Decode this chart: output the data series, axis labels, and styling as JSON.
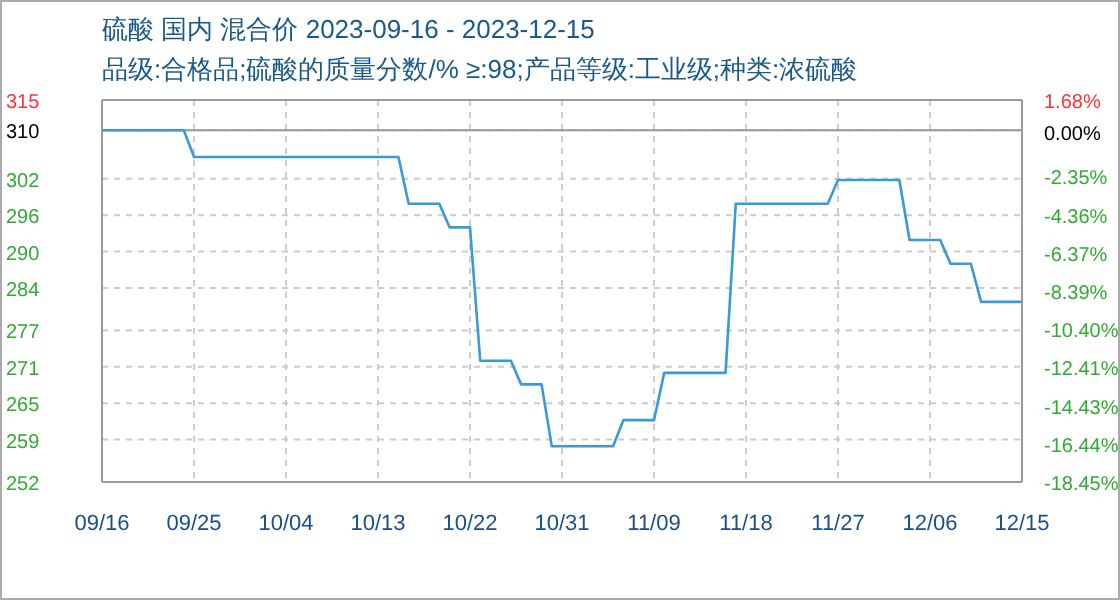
{
  "chart_data": {
    "type": "line",
    "title": "硫酸 国内 混合价 2023-09-16 - 2023-12-15",
    "subtitle": "品级:合格品;硫酸的质量分数/%  ≥:98;产品等级:工业级;种类:浓硫酸",
    "x": [
      "2023-09-16",
      "2023-09-24",
      "2023-09-25",
      "2023-10-15",
      "2023-10-16",
      "2023-10-19",
      "2023-10-20",
      "2023-10-22",
      "2023-10-23",
      "2023-10-26",
      "2023-10-27",
      "2023-10-29",
      "2023-10-30",
      "2023-11-05",
      "2023-11-06",
      "2023-11-09",
      "2023-11-10",
      "2023-11-16",
      "2023-11-17",
      "2023-11-26",
      "2023-11-27",
      "2023-12-03",
      "2023-12-04",
      "2023-12-07",
      "2023-12-08",
      "2023-12-10",
      "2023-12-11",
      "2023-12-15"
    ],
    "series": [
      {
        "color": "#3a9ad9",
        "values": [
          310,
          310,
          305.6,
          305.6,
          297.9,
          297.9,
          294.0,
          294.0,
          272.0,
          272.0,
          268.1,
          268.1,
          257.9,
          257.9,
          262.2,
          262.2,
          270.0,
          270.0,
          297.9,
          297.9,
          301.8,
          301.8,
          291.9,
          291.9,
          288.0,
          288.0,
          281.7,
          281.7
        ]
      }
    ],
    "xlim": [
      "2023-09-16",
      "2023-12-15"
    ],
    "xticks": [
      {
        "value": "2023-09-16",
        "label": "09/16"
      },
      {
        "value": "2023-09-25",
        "label": "09/25"
      },
      {
        "value": "2023-10-04",
        "label": "10/04"
      },
      {
        "value": "2023-10-13",
        "label": "10/13"
      },
      {
        "value": "2023-10-22",
        "label": "10/22"
      },
      {
        "value": "2023-10-31",
        "label": "10/31"
      },
      {
        "value": "2023-11-09",
        "label": "11/09"
      },
      {
        "value": "2023-11-18",
        "label": "11/18"
      },
      {
        "value": "2023-11-27",
        "label": "11/27"
      },
      {
        "value": "2023-12-06",
        "label": "12/06"
      },
      {
        "value": "2023-12-15",
        "label": "12/15"
      }
    ],
    "ylim": [
      252,
      315
    ],
    "yticks": [
      315,
      310,
      302,
      296,
      290,
      284,
      277,
      271,
      265,
      259,
      252
    ],
    "y2lim": [
      -18.45,
      1.68
    ],
    "y2ticks": [
      {
        "value": 1.68,
        "label": "1.68%"
      },
      {
        "value": 0,
        "label": "0.00%"
      },
      {
        "value": -2.35,
        "label": "-2.35%"
      },
      {
        "value": -4.36,
        "label": "-4.36%"
      },
      {
        "value": -6.37,
        "label": "-6.37%"
      },
      {
        "value": -8.39,
        "label": "-8.39%"
      },
      {
        "value": -10.4,
        "label": "-10.40%"
      },
      {
        "value": -12.41,
        "label": "-12.41%"
      },
      {
        "value": -14.43,
        "label": "-14.43%"
      },
      {
        "value": -16.44,
        "label": "-16.44%"
      },
      {
        "value": -18.45,
        "label": "-18.45%"
      }
    ],
    "ref_lines": [
      {
        "axis": "y",
        "value": 310,
        "color": "#999999",
        "line_style": "solid"
      }
    ],
    "grid": true,
    "legend": false,
    "marker": "none",
    "line_style": "solid"
  }
}
